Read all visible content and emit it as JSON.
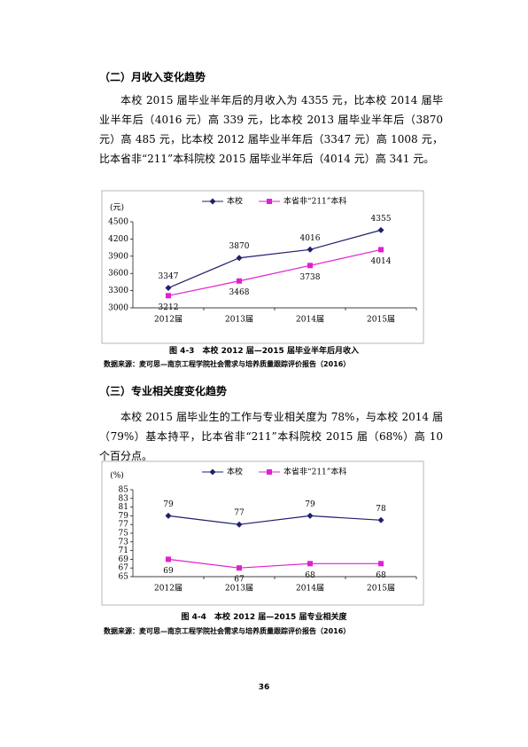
{
  "document": {
    "heading1": "（二）月收入变化趋势",
    "paragraph1": "本校 2015 届毕业半年后的月收入为 4355 元，比本校 2014 届毕业半年后（4016 元）高 339 元，比本校 2013 届毕业半年后（3870 元）高 485 元，比本校 2012 届毕业半年后（3347 元）高 1008 元，比本省非“211”本科院校 2015 届毕业半年后（4014 元）高 341 元。",
    "caption1": "图 4-3　本校 2012 届—2015 届毕业半年后月收入",
    "source1": "数据来源：麦可思—南京工程学院社会需求与培养质量跟踪评价报告（2016）",
    "heading2": "（三）专业相关度变化趋势",
    "paragraph2": "本校 2015 届毕业生的工作与专业相关度为 78%，与本校 2014 届（79%）基本持平，比本省非“211”本科院校 2015 届（68%）高 10 个百分点。",
    "caption2": "图 4-4　本校 2012 届—2015 届专业相关度",
    "source2": "数据来源：麦可思—南京工程学院社会需求与培养质量跟踪评价报告（2016）",
    "page_number": "36"
  },
  "chart_data": [
    {
      "type": "line",
      "y_label": "(元)",
      "categories": [
        "2012届",
        "2013届",
        "2014届",
        "2015届"
      ],
      "series": [
        {
          "name": "本校",
          "color": "#1f1f6e",
          "marker": "diamond",
          "values": [
            3347,
            3870,
            4016,
            4355
          ]
        },
        {
          "name": "本省非“211”本科",
          "color": "#e020d0",
          "marker": "square",
          "values": [
            3212,
            3468,
            3738,
            4014
          ]
        }
      ],
      "ylim": [
        3000,
        4500
      ],
      "yticks": [
        3000,
        3300,
        3600,
        3900,
        4200,
        4500
      ],
      "legend": "top"
    },
    {
      "type": "line",
      "y_label": "(%)",
      "categories": [
        "2012届",
        "2013届",
        "2014届",
        "2015届"
      ],
      "series": [
        {
          "name": "本校",
          "color": "#1f1f6e",
          "marker": "diamond",
          "values": [
            79,
            77,
            79,
            78
          ]
        },
        {
          "name": "本省非“211”本科",
          "color": "#e020d0",
          "marker": "square",
          "values": [
            69,
            67,
            68,
            68
          ]
        }
      ],
      "ylim": [
        65,
        85
      ],
      "yticks": [
        65,
        67,
        69,
        71,
        73,
        75,
        77,
        79,
        81,
        83,
        85
      ],
      "legend": "top"
    }
  ]
}
